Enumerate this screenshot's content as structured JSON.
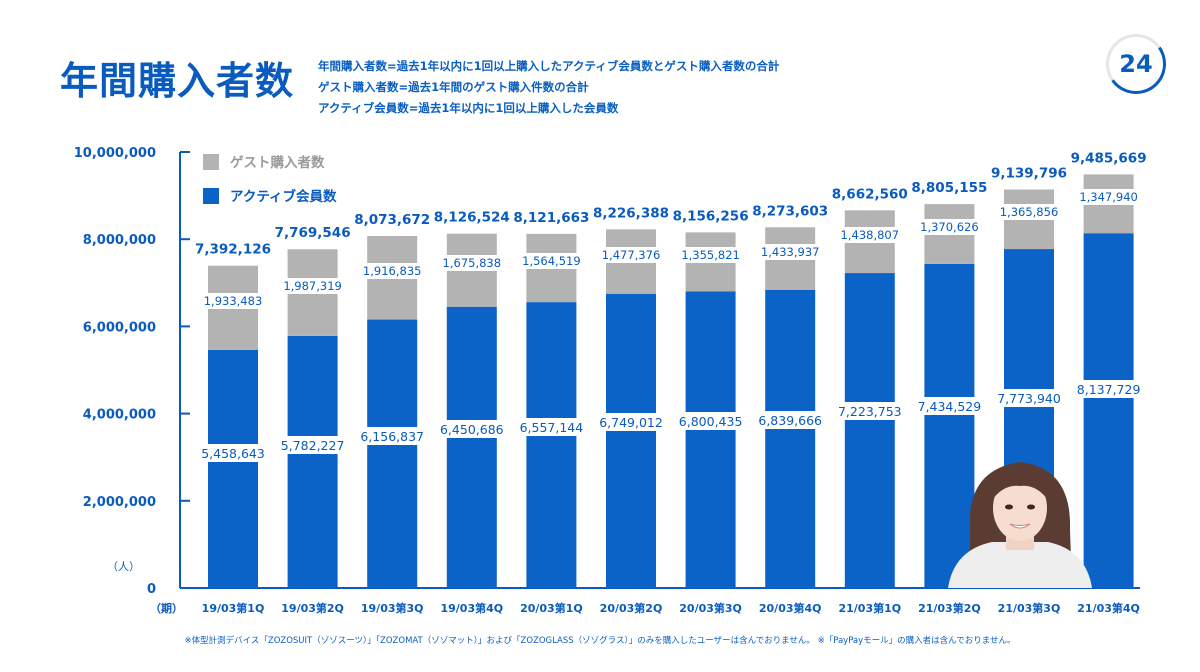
{
  "page": {
    "title": "年間購入者数",
    "number": "24",
    "definitions": [
      "年間購入者数=過去1年以内に1回以上購入したアクティブ会員数とゲスト購入者数の合計",
      "ゲスト購入者数=過去1年間のゲスト購入件数の合計",
      "アクティブ会員数=過去1年以内に1回以上購入した会員数"
    ],
    "footnote": "※体型計測デバイス「ZOZOSUIT（ゾゾスーツ）」「ZOZOMAT（ゾゾマット）」および「ZOZOGLASS（ゾゾグラス）」のみを購入したユーザーは含んでおりません。 ※「PayPayモール」の購入者は含んでおりません。"
  },
  "colors": {
    "accent": "#0a5bbf",
    "active": "#0b63c8",
    "guest": "#b3b3b3"
  },
  "chart_data": {
    "type": "bar",
    "stacked": true,
    "categories": [
      "19/03第1Q",
      "19/03第2Q",
      "19/03第3Q",
      "19/03第4Q",
      "20/03第1Q",
      "20/03第2Q",
      "20/03第3Q",
      "20/03第4Q",
      "21/03第1Q",
      "21/03第2Q",
      "21/03第3Q",
      "21/03第4Q"
    ],
    "series": [
      {
        "name": "アクティブ会員数",
        "values": [
          5458643,
          5782227,
          6156837,
          6450686,
          6557144,
          6749012,
          6800435,
          6839666,
          7223753,
          7434529,
          7773940,
          8137729
        ],
        "labels": [
          "5,458,643",
          "5,782,227",
          "6,156,837",
          "6,450,686",
          "6,557,144",
          "6,749,012",
          "6,800,435",
          "6,839,666",
          "7,223,753",
          "7,434,529",
          "7,773,940",
          "8,137,729"
        ]
      },
      {
        "name": "ゲスト購入者数",
        "values": [
          1933483,
          1987319,
          1916835,
          1675838,
          1564519,
          1477376,
          1355821,
          1433937,
          1438807,
          1370626,
          1365856,
          1347940
        ],
        "labels": [
          "1,933,483",
          "1,987,319",
          "1,916,835",
          "1,675,838",
          "1,564,519",
          "1,477,376",
          "1,355,821",
          "1,433,937",
          "1,438,807",
          "1,370,626",
          "1,365,856",
          "1,347,940"
        ]
      }
    ],
    "totals": [
      "7,392,126",
      "7,769,546",
      "8,073,672",
      "8,126,524",
      "8,121,663",
      "8,226,388",
      "8,156,256",
      "8,273,603",
      "8,662,560",
      "8,805,155",
      "9,139,796",
      "9,485,669"
    ],
    "ylim": [
      0,
      10000000
    ],
    "yticks": [
      {
        "value": 0,
        "label": "0"
      },
      {
        "value": 2000000,
        "label": "2,000,000"
      },
      {
        "value": 4000000,
        "label": "4,000,000"
      },
      {
        "value": 6000000,
        "label": "6,000,000"
      },
      {
        "value": 8000000,
        "label": "8,000,000"
      },
      {
        "value": 10000000,
        "label": "10,000,000"
      }
    ],
    "ylabel": "（人）",
    "xlabel": "（期）",
    "legend": {
      "placement": "top-left"
    },
    "grid": false
  }
}
